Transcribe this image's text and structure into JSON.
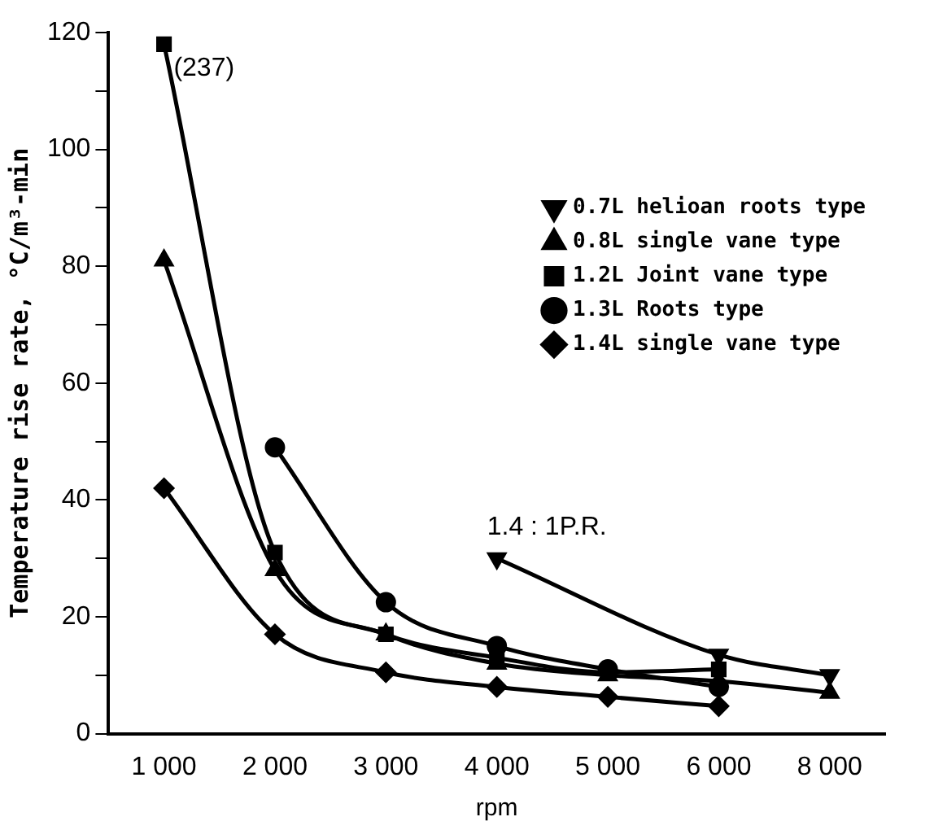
{
  "chart_data": {
    "type": "line",
    "xlabel": "rpm",
    "ylabel": "Temperature rise rate, °C/m³-min",
    "categories": [
      "1 000",
      "2 000",
      "3 000",
      "4 000",
      "5 000",
      "6 000",
      "8 000"
    ],
    "series": [
      {
        "name": "0.7L helioan roots type",
        "color": "#000000",
        "marker": "triangle-down",
        "values": [
          null,
          null,
          null,
          30,
          null,
          13.5,
          10
        ]
      },
      {
        "name": "0.8L single vane type",
        "color": "#000000",
        "marker": "triangle",
        "values": [
          81,
          28,
          17,
          12,
          10,
          9,
          7
        ]
      },
      {
        "name": "1.2L Joint vane type",
        "color": "#000000",
        "marker": "square",
        "values": [
          118,
          31,
          17,
          13,
          10.5,
          11,
          null
        ]
      },
      {
        "name": "1.3L Roots type",
        "color": "#000000",
        "marker": "circle",
        "values": [
          null,
          49,
          22.5,
          15,
          11,
          8,
          null
        ]
      },
      {
        "name": "1.4L single vane type",
        "color": "#000000",
        "marker": "diamond",
        "values": [
          42,
          17,
          10.5,
          8,
          6.3,
          4.7,
          null
        ]
      }
    ],
    "ylim": [
      0,
      120
    ],
    "yticks": [
      0,
      {
        "value": 10,
        "label": null
      },
      20,
      {
        "value": 30,
        "label": null
      },
      40,
      {
        "value": 50,
        "label": null
      },
      60,
      {
        "value": 70,
        "label": null
      },
      80,
      {
        "value": 90,
        "label": null
      },
      100,
      {
        "value": 110,
        "label": null
      },
      120
    ],
    "legend": "right",
    "annotations": [
      "(237)",
      "1.4 : 1P.R."
    ]
  }
}
